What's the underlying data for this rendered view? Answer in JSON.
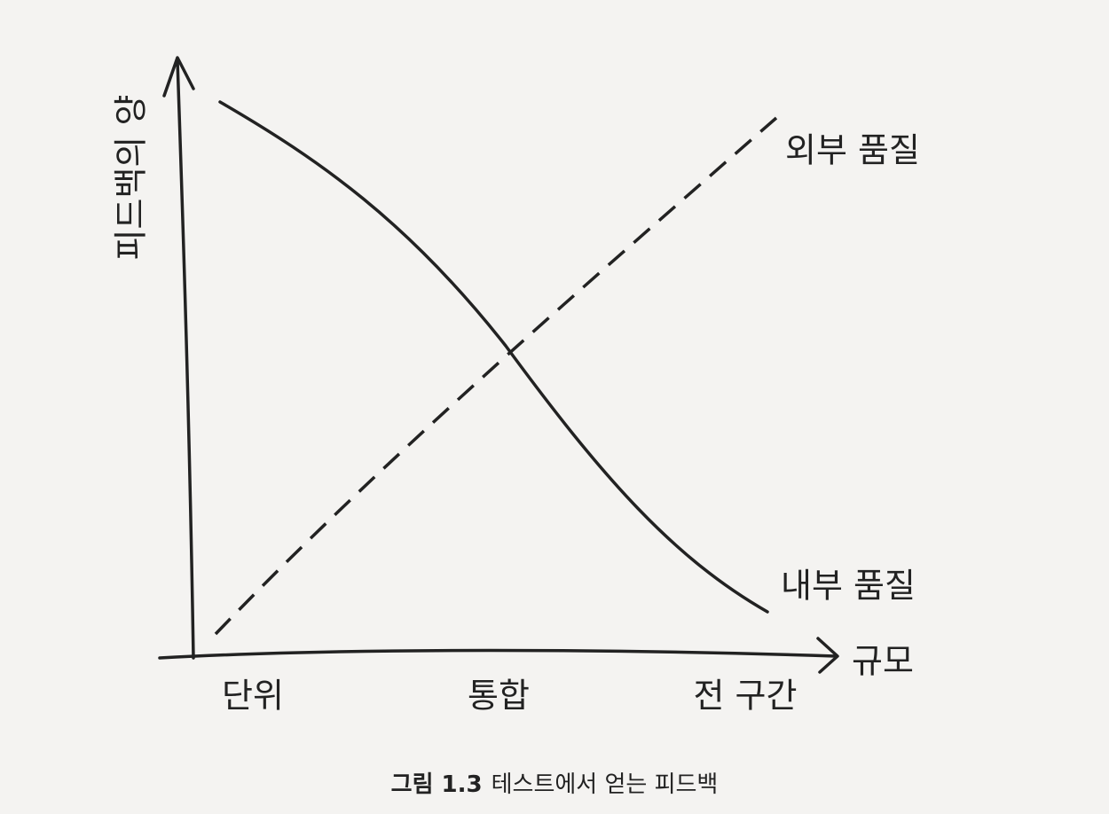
{
  "y_axis_label": "피드백의 양",
  "x_axis_label": "규모",
  "x_labels": [
    "단위",
    "통합",
    "전 구간"
  ],
  "lines": [
    {
      "label": "외부 품질"
    },
    {
      "label": "내부 품질"
    }
  ],
  "caption": {
    "number": "그림 1.3",
    "text": "테스트에서 얻는 피드백"
  }
}
